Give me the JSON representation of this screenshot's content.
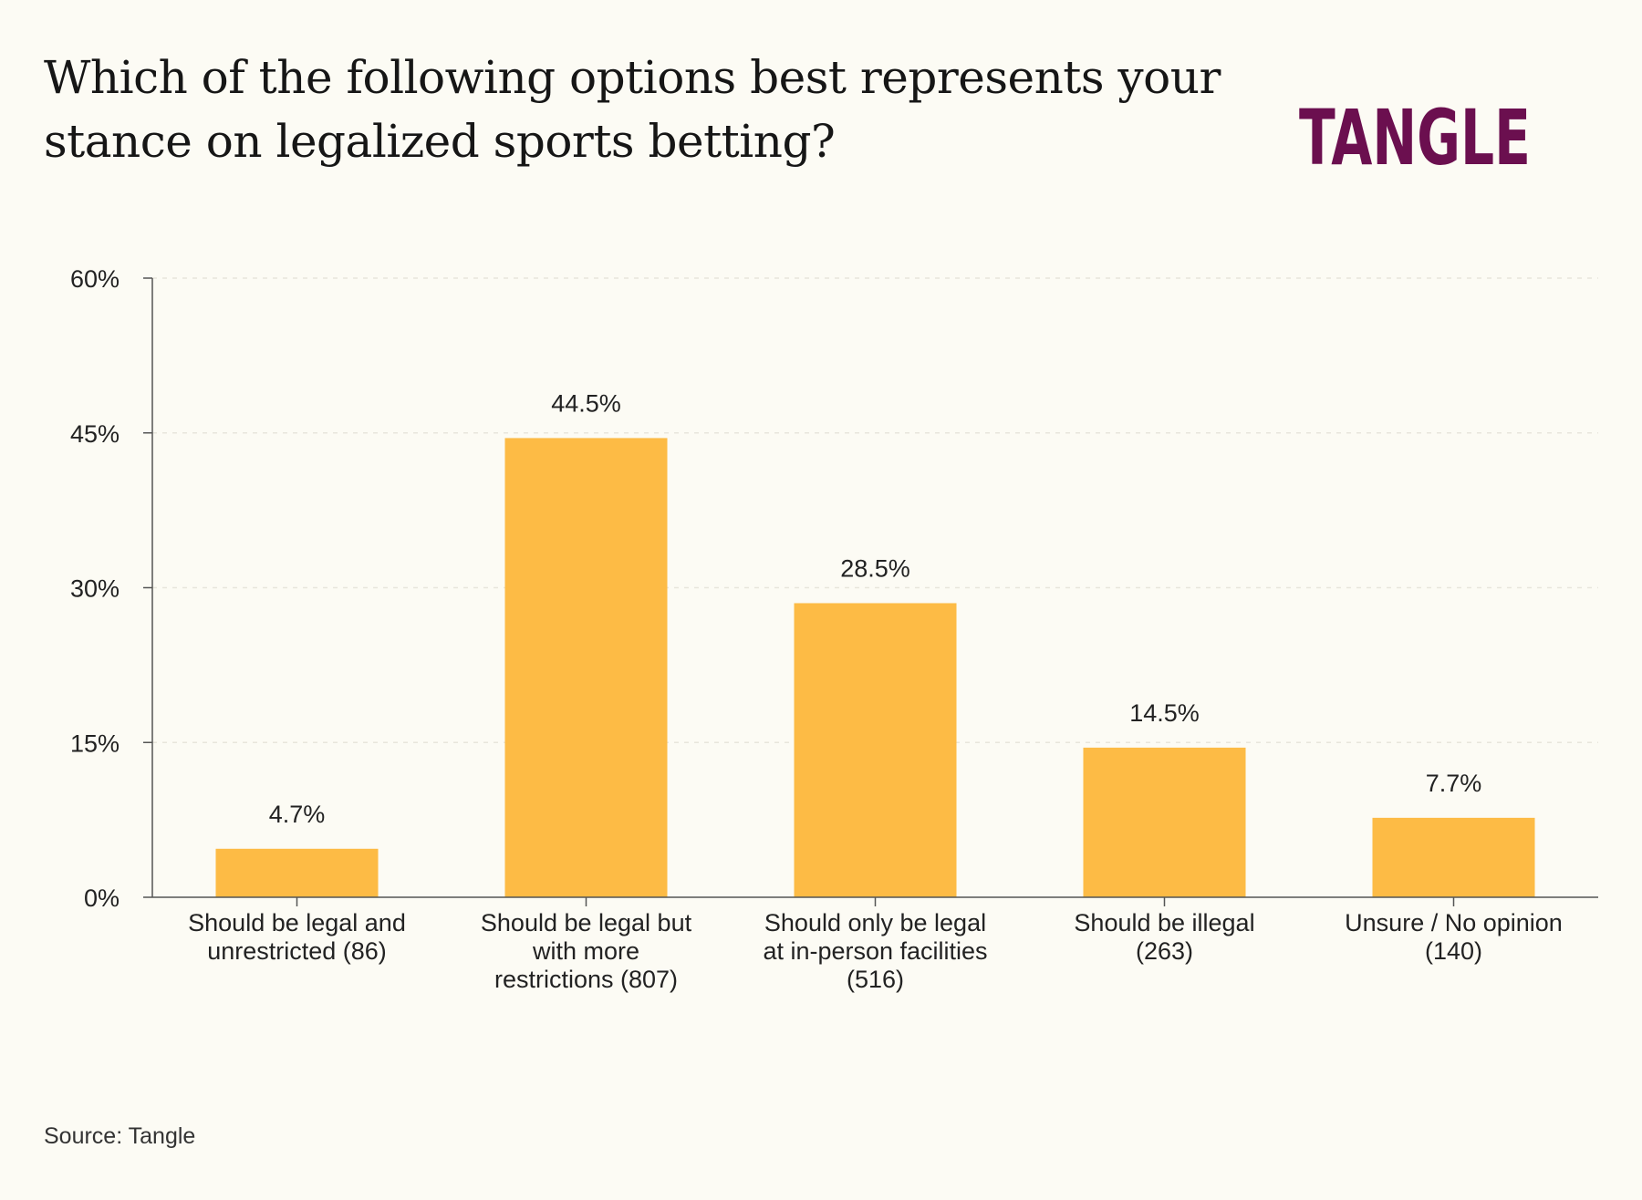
{
  "title": "Which of the following options best represents your stance on legalized sports betting?",
  "logo_text": "TANGLE",
  "source": "Source: Tangle",
  "colors": {
    "background": "#fcfbf4",
    "bar": "#fdbb45",
    "brand": "#6b0f4f",
    "axis": "#555555",
    "grid": "#e8e6dc"
  },
  "chart_data": {
    "type": "bar",
    "title": "Which of the following options best represents your stance on legalized sports betting?",
    "xlabel": "",
    "ylabel": "",
    "ylim": [
      0,
      60
    ],
    "yticks": [
      "0%",
      "15%",
      "30%",
      "45%",
      "60%"
    ],
    "ytick_values": [
      0,
      15,
      30,
      45,
      60
    ],
    "grid": true,
    "legend": "none",
    "categories": [
      [
        "Should be legal and",
        "unrestricted (86)"
      ],
      [
        "Should be legal but",
        "with more",
        "restrictions (807)"
      ],
      [
        "Should only be legal",
        "at in-person facilities",
        "(516)"
      ],
      [
        "Should be illegal",
        "(263)"
      ],
      [
        "Unsure / No opinion",
        "(140)"
      ]
    ],
    "values": [
      4.7,
      44.5,
      28.5,
      14.5,
      7.7
    ],
    "data_labels": [
      "4.7%",
      "44.5%",
      "28.5%",
      "14.5%",
      "7.7%"
    ]
  }
}
